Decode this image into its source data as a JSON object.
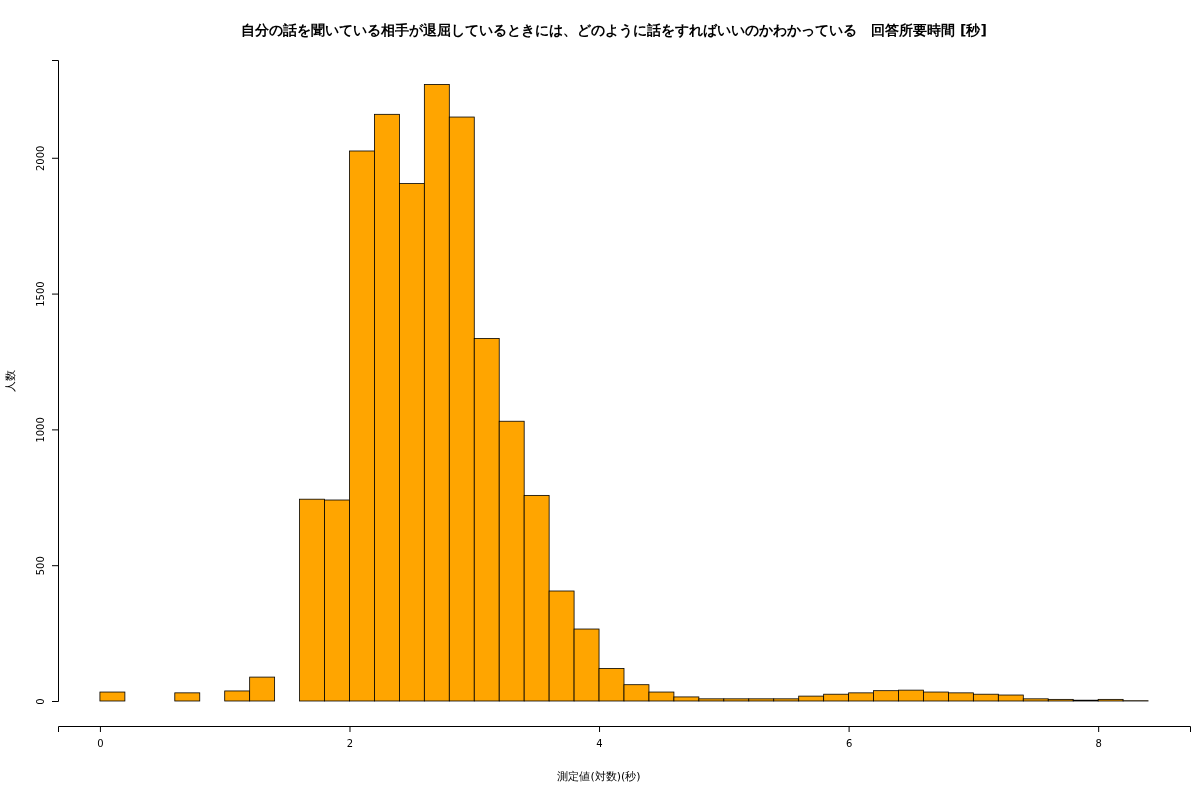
{
  "chart_data": {
    "type": "histogram",
    "title": "自分の話を聞いている相手が退屈しているときには、どのように話をすればいいのかわかっている　回答所要時間 [秒]",
    "xlabel": "測定値(対数)(秒)",
    "ylabel": "人数",
    "color": "#ffa500",
    "bins": [
      0,
      0.2,
      0.4,
      0.6,
      0.8,
      1.0,
      1.2,
      1.4,
      1.6,
      1.8,
      2.0,
      2.2,
      2.4,
      2.6,
      2.8,
      3.0,
      3.2,
      3.4,
      3.6,
      3.8,
      4.0,
      4.2,
      4.4,
      4.6,
      4.8,
      5.0,
      5.2,
      5.4,
      5.6,
      5.8,
      6.0,
      6.2,
      6.4,
      6.6,
      6.8,
      7.0,
      7.2,
      7.4,
      7.6,
      7.8,
      8.0,
      8.2,
      8.4
    ],
    "values": [
      33,
      0,
      0,
      30,
      0,
      37,
      88,
      0,
      743,
      740,
      2025,
      2160,
      1905,
      2270,
      2150,
      1335,
      1030,
      757,
      405,
      265,
      120,
      60,
      33,
      15,
      8,
      8,
      8,
      8,
      18,
      25,
      30,
      38,
      40,
      33,
      30,
      25,
      22,
      8,
      6,
      3,
      6,
      1
    ],
    "xlim": [
      -0.336,
      8.736
    ],
    "xticks": [
      0,
      2,
      4,
      6,
      8
    ],
    "ylim": [
      0,
      2360
    ],
    "yticks": [
      0,
      500,
      1000,
      1500,
      2000
    ],
    "grid": false
  }
}
